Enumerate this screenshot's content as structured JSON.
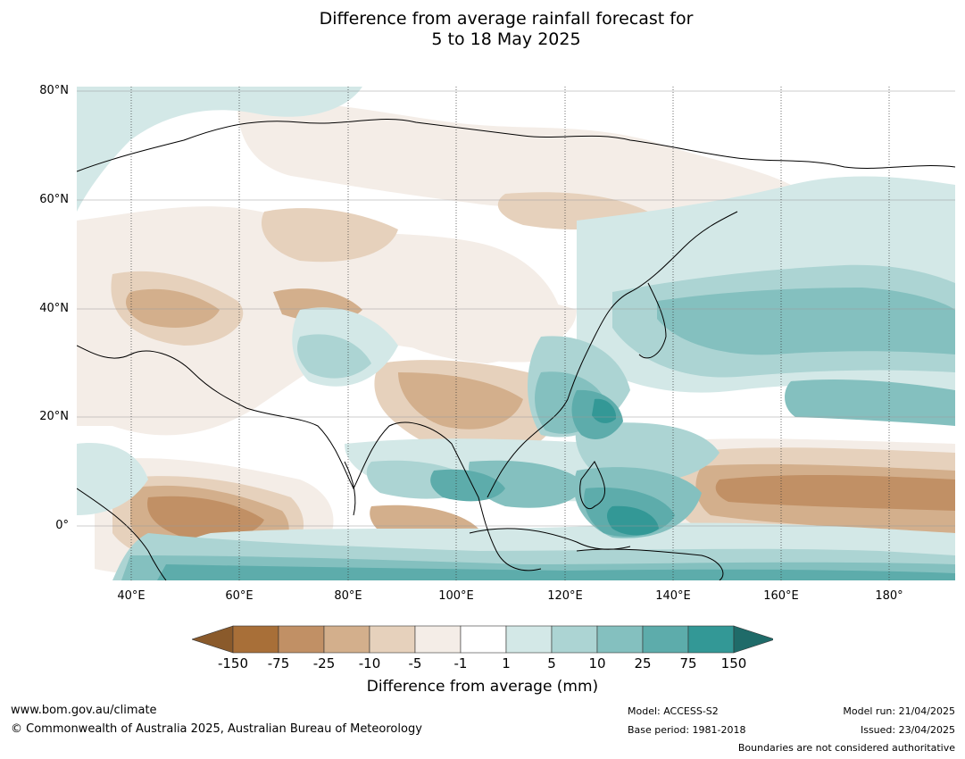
{
  "title": {
    "line1": "Difference from average rainfall forecast for",
    "line2": "5 to 18 May 2025"
  },
  "map": {
    "lat_labels": [
      "80°N",
      "60°N",
      "40°N",
      "20°N",
      "0°"
    ],
    "lon_labels": [
      "40°E",
      "60°E",
      "80°E",
      "100°E",
      "120°E",
      "140°E",
      "160°E",
      "180°"
    ]
  },
  "colorbar": {
    "tick_labels": [
      "-150",
      "-75",
      "-25",
      "-10",
      "-5",
      "-1",
      "1",
      "5",
      "10",
      "25",
      "75",
      "150"
    ],
    "colors": [
      "#a86f38",
      "#c19065",
      "#d3af8c",
      "#e6d1bc",
      "#f4ede7",
      "#ffffff",
      "#d3e8e7",
      "#acd4d3",
      "#84c0bf",
      "#5dacab",
      "#339896"
    ],
    "extend_low_color": "#8a5a2b",
    "extend_high_color": "#1f6b69",
    "title": "Difference from average (mm)"
  },
  "footer": {
    "url": "www.bom.gov.au/climate",
    "copyright": "© Commonwealth of Australia 2025, Australian Bureau of Meteorology",
    "model": "Model: ACCESS-S2",
    "base_period": "Base period: 1981-2018",
    "model_run": "Model run: 21/04/2025",
    "issued": "Issued: 23/04/2025",
    "disclaimer": "Boundaries are not considered authoritative"
  }
}
